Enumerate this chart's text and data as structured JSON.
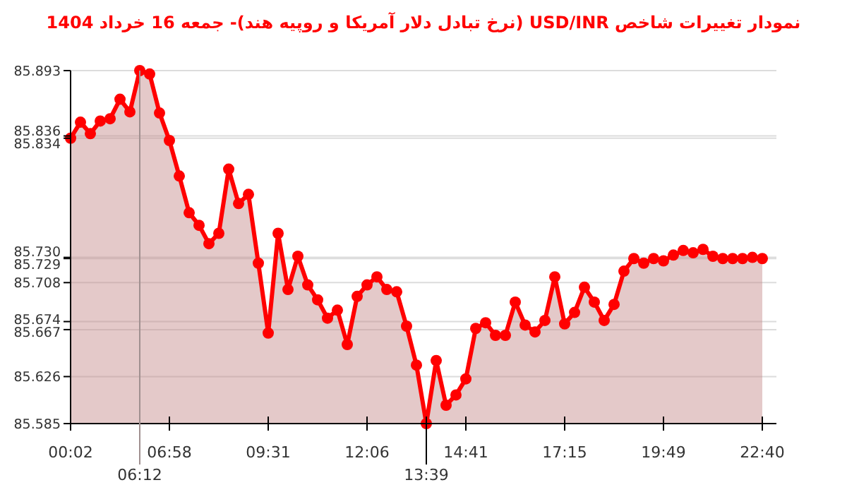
{
  "chart_data": {
    "type": "area",
    "title": "نمودار تغییرات شاخص USD/INR (نرخ تبادل دلار آمریکا و روپیه هند)- جمعه  16 خرداد 1404",
    "annotations": [
      {
        "text": "06:12",
        "y": 85.893
      },
      {
        "text": "13:39",
        "y": 85.585
      }
    ],
    "categories": [
      "00:02",
      null,
      null,
      null,
      null,
      null,
      null,
      null,
      null,
      null,
      "06:58",
      null,
      null,
      null,
      null,
      null,
      null,
      null,
      null,
      null,
      "09:31",
      null,
      null,
      null,
      null,
      null,
      null,
      null,
      null,
      null,
      "12:06",
      null,
      null,
      null,
      null,
      null,
      null,
      null,
      null,
      null,
      "14:41",
      null,
      null,
      null,
      null,
      null,
      null,
      null,
      null,
      null,
      "17:15",
      null,
      null,
      null,
      null,
      null,
      null,
      null,
      null,
      null,
      "19:49",
      null,
      null,
      null,
      null,
      null,
      null,
      null,
      null,
      null,
      "22:40"
    ],
    "series": [
      {
        "color": "#ff0000",
        "values": [
          85.834,
          85.848,
          85.838,
          85.849,
          85.851,
          85.868,
          85.857,
          85.893,
          85.89,
          85.856,
          85.832,
          85.801,
          85.769,
          85.758,
          85.742,
          85.751,
          85.807,
          85.777,
          85.785,
          85.725,
          85.664,
          85.751,
          85.702,
          85.731,
          85.706,
          85.693,
          85.677,
          85.684,
          85.654,
          85.696,
          85.706,
          85.713,
          85.702,
          85.7,
          85.67,
          85.636,
          85.585,
          85.64,
          85.601,
          85.61,
          85.624,
          85.668,
          85.673,
          85.662,
          85.662,
          85.691,
          85.671,
          85.665,
          85.675,
          85.713,
          85.672,
          85.682,
          85.704,
          85.691,
          85.675,
          85.689,
          85.718,
          85.729,
          85.725,
          85.729,
          85.727,
          85.732,
          85.736,
          85.734,
          85.737,
          85.731,
          85.729,
          85.729,
          85.729,
          85.73,
          85.729
        ]
      }
    ],
    "ylim": [
      85.585,
      85.893
    ],
    "yticks": [
      85.585,
      85.626,
      85.667,
      85.674,
      85.708,
      85.729,
      {
        "value": 85.73,
        "label": "85.730"
      },
      85.834,
      85.836,
      85.893
    ],
    "grid": "y",
    "marker": "circle",
    "line_style": "solid"
  }
}
